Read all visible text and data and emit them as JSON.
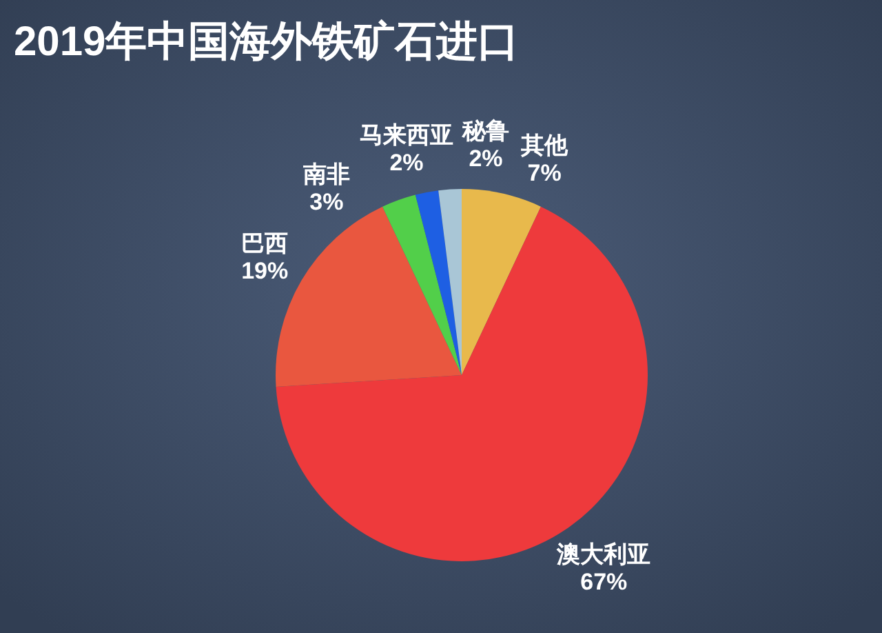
{
  "chart_data": {
    "type": "pie",
    "title": "2019年中国海外铁矿石进口",
    "categories": [
      "其他",
      "澳大利亚",
      "巴西",
      "南非",
      "马来西亚",
      "秘鲁"
    ],
    "values": [
      7,
      67,
      19,
      3,
      2,
      2
    ],
    "colors": [
      "#e8b94c",
      "#ee3a3c",
      "#e9573f",
      "#52cf4a",
      "#1e5fe3",
      "#a9c6d6"
    ],
    "value_labels": [
      "7%",
      "67%",
      "19%",
      "3%",
      "2%",
      "2%"
    ]
  }
}
